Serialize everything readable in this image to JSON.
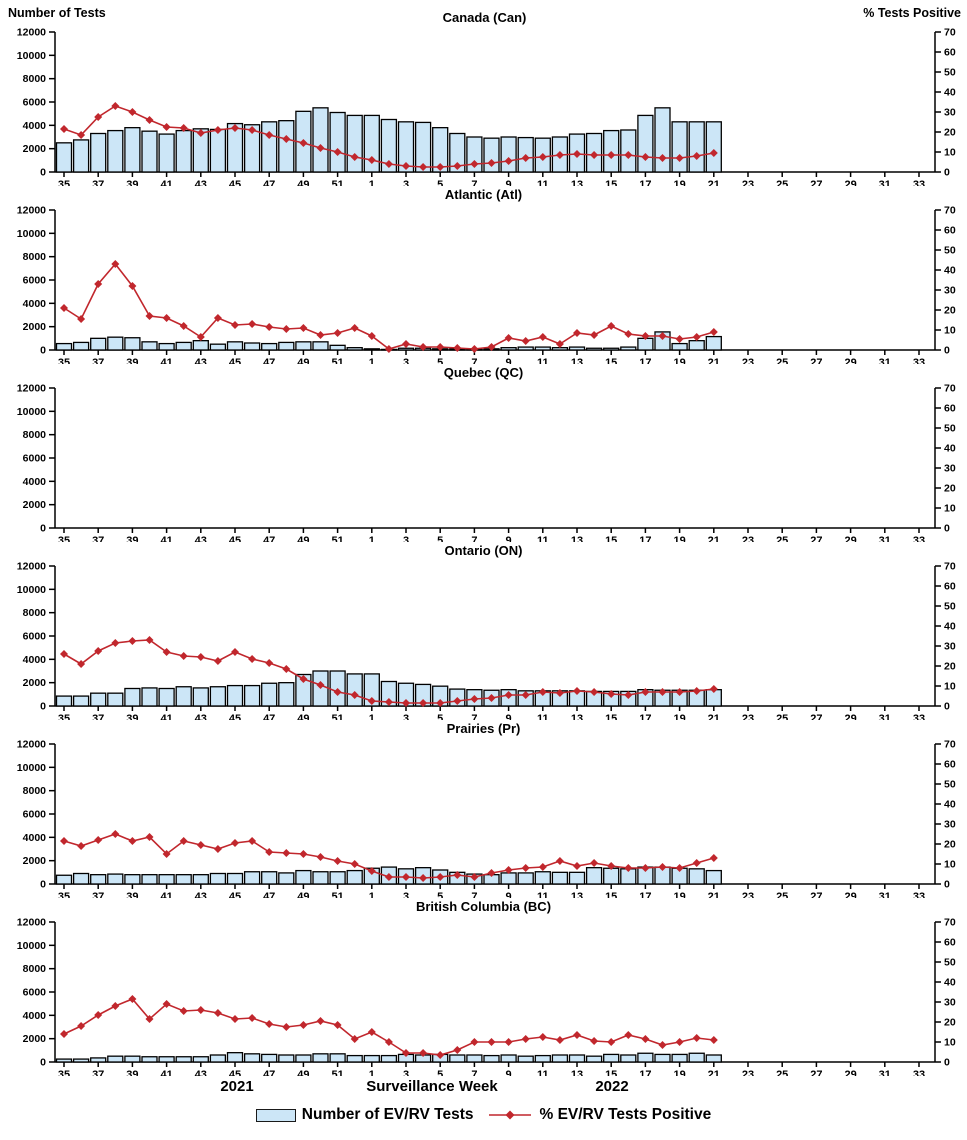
{
  "header": {
    "left_axis_title": "Number of Tests",
    "right_axis_title": "% Tests Positive"
  },
  "footer": {
    "year_left": "2021",
    "xlabel": "Surveillance Week",
    "year_right": "2022"
  },
  "legend": {
    "bars_label": "Number of EV/RV Tests",
    "line_label": "% EV/RV Tests Positive"
  },
  "colors": {
    "bar_fill": "#CCE6F7",
    "bar_stroke": "#000000",
    "line": "#C1272D",
    "axis": "#000000"
  },
  "axes": {
    "y_left": {
      "min": 0,
      "max": 12000,
      "step": 2000
    },
    "y_right": {
      "min": 0,
      "max": 70,
      "step": 10
    },
    "x_slots": [
      35,
      36,
      37,
      38,
      39,
      40,
      41,
      42,
      43,
      44,
      45,
      46,
      47,
      48,
      49,
      50,
      51,
      52,
      1,
      2,
      3,
      4,
      5,
      6,
      7,
      8,
      9,
      10,
      11,
      12,
      13,
      14,
      15,
      16,
      17,
      18,
      19,
      20,
      21,
      22,
      23,
      24,
      25,
      26,
      27,
      28,
      29,
      30,
      31,
      32,
      33
    ],
    "x_tick_labels": [
      "35",
      "37",
      "39",
      "41",
      "43",
      "45",
      "47",
      "49",
      "51",
      "1",
      "3",
      "5",
      "7",
      "9",
      "11",
      "13",
      "15",
      "17",
      "19",
      "21",
      "23",
      "25",
      "27",
      "29",
      "31",
      "33"
    ]
  },
  "chart_data": [
    {
      "type": "bar+line",
      "region": "Canada (Can)",
      "weeks_note": "weeks 35-52 of 2021 then 1-21 of 2022",
      "tests": [
        2500,
        2750,
        3300,
        3550,
        3800,
        3500,
        3250,
        3550,
        3700,
        3650,
        4150,
        4050,
        4300,
        4400,
        5200,
        5500,
        5100,
        4850,
        4850,
        4500,
        4300,
        4250,
        3800,
        3300,
        3000,
        2900,
        3000,
        2950,
        2900,
        3000,
        3250,
        3300,
        3550,
        3600,
        4850,
        5500,
        4300,
        4300,
        4300
      ],
      "pct_positive": [
        21.5,
        18.5,
        27.5,
        33,
        30,
        26,
        22.5,
        22,
        19.5,
        21,
        22,
        21,
        18.5,
        16.5,
        14.5,
        12,
        10,
        7.5,
        6,
        4,
        3,
        2.5,
        2.5,
        3,
        4,
        4.5,
        5.5,
        7,
        7.5,
        8.5,
        9,
        8.5,
        8.5,
        8.5,
        7.5,
        7,
        7,
        8,
        9.5
      ]
    },
    {
      "type": "bar+line",
      "region": "Atlantic (Atl)",
      "tests": [
        550,
        650,
        1000,
        1100,
        1050,
        700,
        550,
        650,
        800,
        500,
        700,
        600,
        550,
        650,
        700,
        700,
        400,
        200,
        100,
        50,
        150,
        150,
        100,
        100,
        100,
        100,
        200,
        250,
        250,
        200,
        250,
        150,
        150,
        250,
        1000,
        1550,
        550,
        800,
        1150
      ],
      "pct_positive": [
        21,
        15.5,
        33,
        43,
        32,
        17,
        16,
        12,
        6.5,
        16,
        12.5,
        13,
        11.5,
        10.5,
        11,
        7.5,
        8.5,
        11,
        7,
        0.5,
        3,
        1.5,
        1.5,
        1,
        0.5,
        1.5,
        6,
        4.5,
        6.5,
        3,
        8.5,
        7.5,
        12,
        8,
        7,
        7,
        5.5,
        6.5,
        9
      ]
    },
    {
      "type": "bar+line",
      "region": "Quebec (QC)",
      "tests": [],
      "pct_positive": []
    },
    {
      "type": "bar+line",
      "region": "Ontario (ON)",
      "tests": [
        850,
        850,
        1100,
        1100,
        1500,
        1550,
        1500,
        1650,
        1550,
        1650,
        1750,
        1750,
        1950,
        2000,
        2700,
        3000,
        3000,
        2750,
        2750,
        2100,
        1950,
        1850,
        1700,
        1450,
        1400,
        1350,
        1400,
        1300,
        1300,
        1300,
        1300,
        1250,
        1250,
        1250,
        1400,
        1350,
        1350,
        1350,
        1400
      ],
      "pct_positive": [
        26,
        21,
        27.5,
        31.5,
        32.5,
        33,
        27,
        25,
        24.5,
        22.5,
        27,
        23.5,
        21.5,
        18.5,
        13.5,
        10.5,
        7,
        5.5,
        2.5,
        2,
        1.5,
        1.5,
        1.5,
        2.5,
        3.5,
        4,
        5.5,
        5.5,
        7,
        6.5,
        7.5,
        7,
        6,
        5.5,
        7,
        7,
        7,
        7.5,
        8.5
      ]
    },
    {
      "type": "bar+line",
      "region": "Prairies (Pr)",
      "tests": [
        750,
        900,
        800,
        850,
        800,
        800,
        800,
        800,
        800,
        900,
        900,
        1050,
        1050,
        950,
        1150,
        1050,
        1050,
        1150,
        1350,
        1450,
        1300,
        1400,
        1200,
        1000,
        850,
        800,
        950,
        950,
        1050,
        1000,
        1000,
        1400,
        1350,
        1300,
        1450,
        1450,
        1350,
        1300,
        1150
      ],
      "pct_positive": [
        21.5,
        19,
        22,
        25,
        21.5,
        23.5,
        15,
        21.5,
        19.5,
        17.5,
        20.5,
        21.5,
        16,
        15.5,
        15,
        13.5,
        11.5,
        10,
        6.5,
        3.5,
        3.5,
        3,
        3.5,
        4.5,
        3.5,
        5.5,
        7,
        8,
        8.5,
        11.5,
        9,
        10.5,
        9,
        8,
        8,
        8.5,
        8,
        10.5,
        13
      ]
    },
    {
      "type": "bar+line",
      "region": "British Columbia (BC)",
      "tests": [
        250,
        250,
        350,
        500,
        500,
        450,
        450,
        450,
        450,
        600,
        800,
        700,
        650,
        600,
        600,
        700,
        700,
        550,
        550,
        550,
        650,
        600,
        650,
        600,
        600,
        550,
        600,
        500,
        550,
        600,
        600,
        500,
        650,
        600,
        750,
        650,
        650,
        750,
        600
      ],
      "pct_positive": [
        14,
        18,
        23.5,
        28,
        31.5,
        21.5,
        29,
        25.5,
        26,
        24.5,
        21.5,
        22,
        19,
        17.5,
        18.5,
        20.5,
        18.5,
        11.5,
        15,
        10,
        4.5,
        4.5,
        3.5,
        6,
        10,
        10,
        10,
        11.5,
        12.5,
        11,
        13.5,
        10.5,
        10,
        13.5,
        11.5,
        8.5,
        10,
        12,
        11
      ]
    }
  ]
}
